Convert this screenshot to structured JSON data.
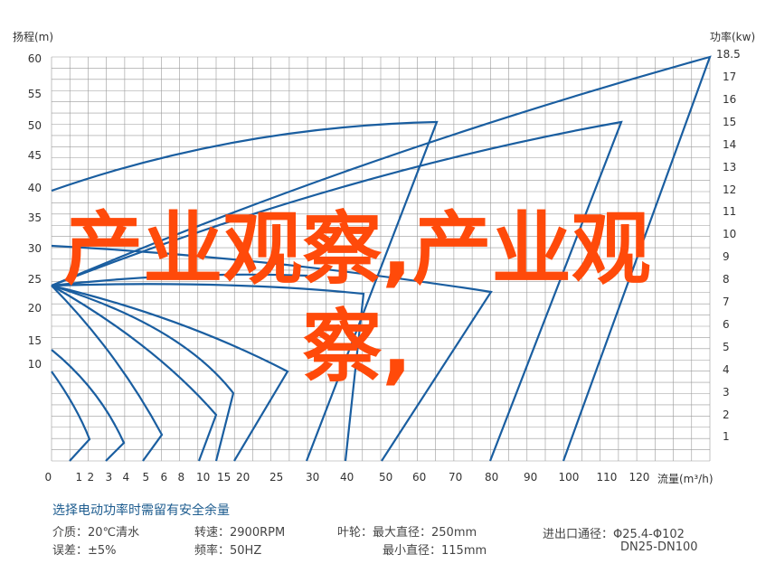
{
  "chart_data": {
    "type": "line",
    "title": "",
    "ylabel_left": "扬程(m)",
    "ylabel_right": "功率(kw)",
    "xlabel": "流量(m³/h)",
    "y_left_ticks": [
      "60",
      "55",
      "50",
      "45",
      "40",
      "35",
      "30",
      "25",
      "20",
      "15",
      "10"
    ],
    "y_right_ticks": [
      "18.5",
      "17",
      "16",
      "15",
      "14",
      "13",
      "12",
      "11",
      "10",
      "9",
      "8",
      "7",
      "6",
      "5",
      "4",
      "3",
      "2",
      "1"
    ],
    "x_ticks": [
      "0",
      "1",
      "2",
      "3",
      "4",
      "5",
      "6",
      "8",
      "10",
      "15",
      "20",
      "25",
      "30",
      "40",
      "50",
      "60",
      "70",
      "80",
      "90",
      "100",
      "110",
      "120"
    ],
    "grid": true,
    "line_color": "#1a5ea0"
  },
  "overlay_text": "产业观察,产业观察,",
  "notes": {
    "heading": "选择电动功率时需留有安全余量",
    "medium": "介质：20℃清水",
    "error": "误差：±5%",
    "speed": "转速：2900RPM",
    "frequency": "频率：50HZ",
    "impeller_max": "叶轮：最大直径：250mm",
    "impeller_min": "最小直径：115mm",
    "port_diameter": "进出口通径：Φ25.4-Φ102",
    "port_dn": "DN25-DN100"
  }
}
